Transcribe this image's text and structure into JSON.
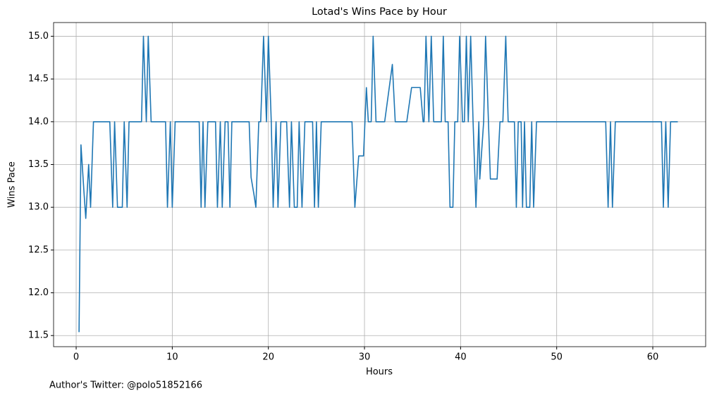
{
  "chart_data": {
    "type": "line",
    "title": "Lotad's Wins Pace by Hour",
    "x_label": "Hours",
    "y_label": "Wins Pace",
    "footnote": "Author's Twitter: @polo51852166",
    "color": "#1f77b4",
    "grid": true,
    "xlim": [
      -2.35,
      65.5
    ],
    "ylim": [
      11.37,
      15.16
    ],
    "xticks": [
      0,
      10,
      20,
      30,
      40,
      50,
      60
    ],
    "yticks": [
      11.5,
      {
        "value": 12,
        "label": "12.0"
      },
      12.5,
      {
        "value": 13,
        "label": "13.0"
      },
      13.5,
      {
        "value": 14,
        "label": "14.0"
      },
      14.5,
      {
        "value": 15,
        "label": "15.0"
      }
    ],
    "x": [
      0.3,
      0.5,
      0.8,
      1.0,
      1.3,
      1.5,
      1.8,
      3.5,
      3.8,
      4.0,
      4.3,
      4.8,
      5.0,
      5.3,
      5.5,
      6.8,
      7.0,
      7.3,
      7.5,
      7.8,
      9.3,
      9.5,
      9.8,
      10.0,
      10.3,
      12.8,
      13.0,
      13.2,
      13.4,
      13.7,
      14.5,
      14.7,
      15.0,
      15.2,
      15.5,
      15.8,
      16.0,
      16.2,
      18.0,
      18.2,
      18.5,
      18.7,
      19.0,
      19.2,
      19.5,
      19.8,
      20.0,
      20.3,
      20.5,
      20.8,
      21.0,
      21.3,
      21.9,
      22.2,
      22.4,
      22.7,
      23.0,
      23.2,
      23.5,
      23.8,
      24.6,
      24.8,
      25.0,
      25.2,
      25.5,
      28.7,
      29.0,
      29.4,
      29.9,
      30.2,
      30.4,
      30.7,
      30.9,
      31.2,
      32.1,
      32.9,
      33.2,
      34.4,
      34.9,
      35.8,
      36.1,
      36.2,
      36.4,
      36.7,
      36.95,
      37.2,
      38.0,
      38.2,
      38.4,
      38.7,
      38.9,
      39.2,
      39.4,
      39.7,
      39.9,
      40.2,
      40.4,
      40.6,
      40.8,
      41.05,
      41.3,
      41.6,
      41.9,
      42.0,
      42.4,
      42.6,
      42.9,
      43.1,
      43.8,
      44.1,
      44.4,
      44.7,
      44.95,
      45.6,
      45.8,
      46.0,
      46.3,
      46.45,
      46.65,
      46.85,
      47.2,
      47.4,
      47.6,
      47.9,
      55.1,
      55.35,
      55.6,
      55.8,
      56.1,
      60.9,
      61.1,
      61.35,
      61.6,
      61.85,
      62.6
    ],
    "values": [
      11.54,
      13.73,
      13.2,
      12.87,
      13.5,
      13,
      14,
      14,
      13,
      14,
      13,
      13,
      14,
      13,
      14,
      14,
      15,
      14,
      15,
      14,
      14,
      13,
      14,
      13,
      14,
      14,
      13,
      14,
      13,
      14,
      14,
      13,
      14,
      13,
      14,
      14,
      13,
      14,
      14,
      13.35,
      13.15,
      13,
      14,
      14,
      15,
      14,
      15,
      14,
      13,
      14,
      13,
      14,
      14,
      13,
      14,
      13,
      13,
      14,
      13,
      14,
      14,
      13,
      14,
      13,
      14,
      14,
      13,
      13.6,
      13.6,
      14.4,
      14,
      14,
      15,
      14,
      14,
      14.67,
      14,
      14,
      14.4,
      14.4,
      14,
      14,
      15,
      14,
      15,
      14,
      14,
      15,
      14,
      14,
      13,
      13,
      14,
      14,
      15,
      14,
      14,
      15,
      14,
      15,
      14,
      13,
      14,
      13.33,
      14,
      15,
      14,
      13.33,
      13.33,
      14,
      14,
      15,
      14,
      14,
      13,
      14,
      14,
      13,
      14,
      13,
      13,
      14,
      13,
      14,
      14,
      13,
      14,
      13,
      14,
      14,
      13,
      14,
      13,
      14,
      14
    ]
  }
}
